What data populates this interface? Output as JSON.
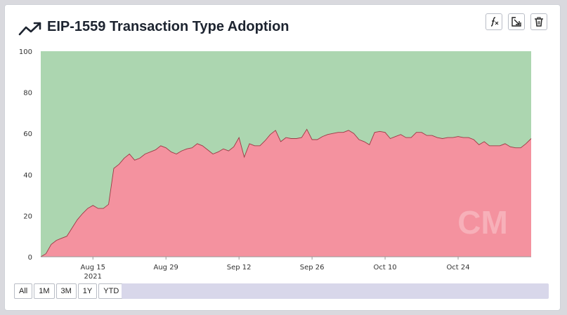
{
  "header": {
    "title": "EIP-1559 Transaction Type Adoption",
    "icons": [
      "trend-arrow-icon",
      "formula-icon",
      "export-icon",
      "trash-icon"
    ]
  },
  "range_buttons": [
    "All",
    "1M",
    "3M",
    "1Y",
    "YTD"
  ],
  "colors": {
    "eip1559_area": "#f4929f",
    "eip1559_line": "#9b3a45",
    "legacy_area": "#acd6b0",
    "background": "#d9d9de"
  },
  "chart_data": {
    "type": "area",
    "stacked": true,
    "title": "EIP-1559 Transaction Type Adoption",
    "ylim": [
      0,
      100
    ],
    "yticks": [
      0,
      20,
      40,
      60,
      80,
      100
    ],
    "xlim": [
      "2021-08-05",
      "2021-11-07"
    ],
    "xticks": [
      {
        "date": "2021-08-15",
        "label": "Aug 15",
        "sublabel": "2021"
      },
      {
        "date": "2021-08-29",
        "label": "Aug 29",
        "sublabel": ""
      },
      {
        "date": "2021-09-12",
        "label": "Sep 12",
        "sublabel": ""
      },
      {
        "date": "2021-09-26",
        "label": "Sep 26",
        "sublabel": ""
      },
      {
        "date": "2021-10-10",
        "label": "Oct 10",
        "sublabel": ""
      },
      {
        "date": "2021-10-24",
        "label": "Oct 24",
        "sublabel": ""
      }
    ],
    "x": [
      "2021-08-05",
      "2021-08-06",
      "2021-08-07",
      "2021-08-08",
      "2021-08-09",
      "2021-08-10",
      "2021-08-11",
      "2021-08-12",
      "2021-08-13",
      "2021-08-14",
      "2021-08-15",
      "2021-08-16",
      "2021-08-17",
      "2021-08-18",
      "2021-08-19",
      "2021-08-20",
      "2021-08-21",
      "2021-08-22",
      "2021-08-23",
      "2021-08-24",
      "2021-08-25",
      "2021-08-26",
      "2021-08-27",
      "2021-08-28",
      "2021-08-29",
      "2021-08-30",
      "2021-08-31",
      "2021-09-01",
      "2021-09-02",
      "2021-09-03",
      "2021-09-04",
      "2021-09-05",
      "2021-09-06",
      "2021-09-07",
      "2021-09-08",
      "2021-09-09",
      "2021-09-10",
      "2021-09-11",
      "2021-09-12",
      "2021-09-13",
      "2021-09-14",
      "2021-09-15",
      "2021-09-16",
      "2021-09-17",
      "2021-09-18",
      "2021-09-19",
      "2021-09-20",
      "2021-09-21",
      "2021-09-22",
      "2021-09-23",
      "2021-09-24",
      "2021-09-25",
      "2021-09-26",
      "2021-09-27",
      "2021-09-28",
      "2021-09-29",
      "2021-09-30",
      "2021-10-01",
      "2021-10-02",
      "2021-10-03",
      "2021-10-04",
      "2021-10-05",
      "2021-10-06",
      "2021-10-07",
      "2021-10-08",
      "2021-10-09",
      "2021-10-10",
      "2021-10-11",
      "2021-10-12",
      "2021-10-13",
      "2021-10-14",
      "2021-10-15",
      "2021-10-16",
      "2021-10-17",
      "2021-10-18",
      "2021-10-19",
      "2021-10-20",
      "2021-10-21",
      "2021-10-22",
      "2021-10-23",
      "2021-10-24",
      "2021-10-25",
      "2021-10-26",
      "2021-10-27",
      "2021-10-28",
      "2021-10-29",
      "2021-10-30",
      "2021-10-31",
      "2021-11-01",
      "2021-11-02",
      "2021-11-03",
      "2021-11-04",
      "2021-11-05",
      "2021-11-06",
      "2021-11-07"
    ],
    "series": [
      {
        "values": [
          0,
          1.5,
          6,
          8,
          9,
          10,
          14,
          18,
          21,
          23.5,
          25,
          23.5,
          23.5,
          25.5,
          43,
          45,
          48,
          50,
          47,
          48,
          50,
          51,
          52,
          54,
          53,
          51,
          50,
          51.5,
          52.5,
          53,
          55,
          54,
          52,
          50,
          51,
          52.5,
          51.5,
          53.5,
          58,
          48.5,
          55,
          54,
          54,
          56.5,
          59.5,
          61.5,
          56,
          58,
          57.5,
          57.5,
          58,
          62,
          57,
          57,
          58.5,
          59.5,
          60,
          60.5,
          60.5,
          61.5,
          60,
          57,
          56,
          54.5,
          60.5,
          61,
          60.5,
          57.5,
          58.5,
          59.5,
          58,
          58,
          60.5,
          60.5,
          59,
          59,
          58,
          57.5,
          58,
          58,
          58.5,
          58,
          58,
          57,
          54.5,
          56,
          54,
          54,
          54,
          55,
          53.5,
          53,
          53,
          55,
          57.5
        ]
      },
      {
        "values": [
          100,
          98.5,
          94,
          92,
          91,
          90,
          86,
          82,
          79,
          76.5,
          75,
          76.5,
          76.5,
          74.5,
          57,
          55,
          52,
          50,
          53,
          52,
          50,
          49,
          48,
          46,
          47,
          49,
          50,
          48.5,
          47.5,
          47,
          45,
          46,
          48,
          50,
          49,
          47.5,
          48.5,
          46.5,
          42,
          51.5,
          45,
          46,
          46,
          43.5,
          40.5,
          38.5,
          44,
          42,
          42.5,
          42.5,
          42,
          38,
          43,
          43,
          41.5,
          40.5,
          40,
          39.5,
          39.5,
          38.5,
          40,
          43,
          44,
          45.5,
          39.5,
          39,
          39.5,
          42.5,
          41.5,
          40.5,
          42,
          42,
          39.5,
          39.5,
          41,
          41,
          42,
          42.5,
          42,
          42,
          41.5,
          42,
          42,
          43,
          45.5,
          44,
          46,
          46,
          46,
          45,
          46.5,
          47,
          47,
          45,
          42.5
        ]
      }
    ]
  }
}
